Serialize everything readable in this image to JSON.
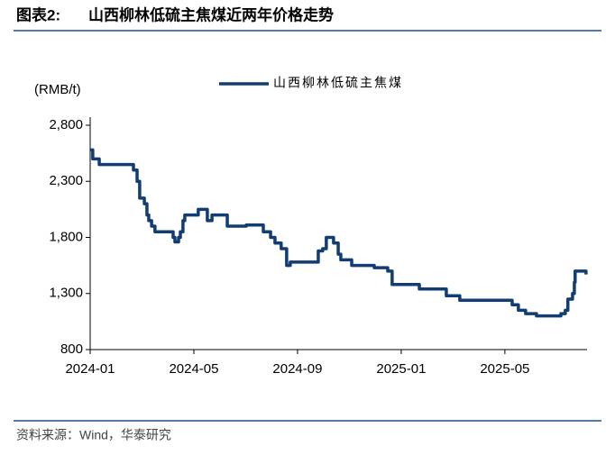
{
  "chart_data": {
    "type": "line",
    "title_prefix": "图表2:",
    "title": "山西柳林低硫主焦煤近两年价格走势",
    "source": "资料来源：Wind，华泰研究",
    "y_label": "(RMB/t)",
    "step": true,
    "x": [
      0,
      0.1,
      0.35,
      1.67,
      1.81,
      1.91,
      2.09,
      2.19,
      2.26,
      2.37,
      2.5,
      3.2,
      3.27,
      3.41,
      3.48,
      3.58,
      3.65,
      4.17,
      4.52,
      4.7,
      5.29,
      6.02,
      6.68,
      6.96,
      7.13,
      7.37,
      7.58,
      7.72,
      8.8,
      8.97,
      9.11,
      9.39,
      9.57,
      9.67,
      10.09,
      10.96,
      11.48,
      11.65,
      12.7,
      13.74,
      14.26,
      16.28,
      16.52,
      16.8,
      17.22,
      18.16,
      18.33,
      18.43,
      18.61,
      18.68,
      18.71,
      19.03,
      19.13
    ],
    "series": [
      {
        "name": "山西柳林低硫主焦煤",
        "color": "#123d74",
        "values": [
          2580,
          2500,
          2450,
          2400,
          2300,
          2150,
          2100,
          2000,
          1950,
          1900,
          1850,
          1800,
          1760,
          1800,
          1850,
          1950,
          2000,
          2050,
          1950,
          2000,
          1900,
          1910,
          1850,
          1800,
          1750,
          1700,
          1550,
          1580,
          1680,
          1700,
          1800,
          1750,
          1650,
          1600,
          1550,
          1530,
          1500,
          1380,
          1340,
          1280,
          1240,
          1200,
          1150,
          1120,
          1100,
          1120,
          1150,
          1250,
          1300,
          1400,
          1500,
          1500,
          1470
        ]
      }
    ],
    "xlim": [
      0,
      19.17
    ],
    "xticks": [
      {
        "value": 0,
        "label": "2024-01"
      },
      {
        "value": 4,
        "label": "2024-05"
      },
      {
        "value": 8,
        "label": "2024-09"
      },
      {
        "value": 12,
        "label": "2025-01"
      },
      {
        "value": 16,
        "label": "2025-05"
      }
    ],
    "ylim": [
      800,
      2800
    ],
    "yticks": [
      800,
      {
        "value": 1300,
        "label": "1,300"
      },
      {
        "value": 1800,
        "label": "1,800"
      },
      {
        "value": 2300,
        "label": "2,300"
      },
      {
        "value": 2800,
        "label": "2,800"
      }
    ],
    "grid": false
  }
}
